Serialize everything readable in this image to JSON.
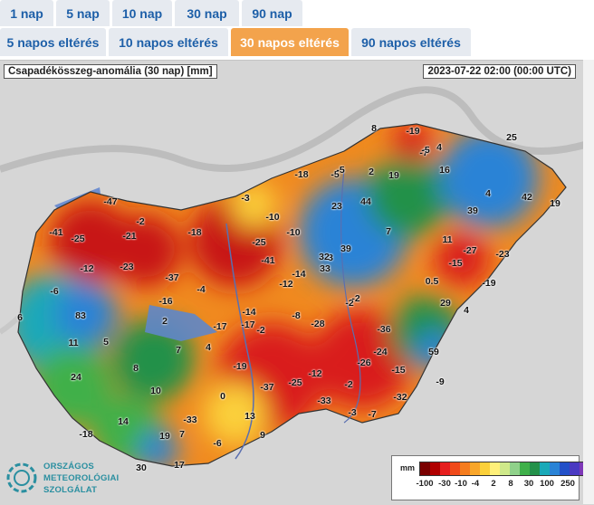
{
  "tabs_row1": [
    "1 nap",
    "5 nap",
    "10 nap",
    "30 nap",
    "90 nap"
  ],
  "tabs_row2": [
    "5 napos eltérés",
    "10 napos eltérés",
    "30 napos eltérés",
    "90 napos eltérés"
  ],
  "active_tab": "30 napos eltérés",
  "map": {
    "title": "Csapadékösszeg-anomália (30 nap) [mm]",
    "timestamp": "2023-07-22 02:00 (00:00 UTC)",
    "values": [
      "-47",
      "-2",
      "-41",
      "-25",
      "-21",
      "-18",
      "-12",
      "-23",
      "-37",
      "-6",
      "-16",
      "-4",
      "83",
      "2",
      "6",
      "11",
      "5",
      "7",
      "4",
      "24",
      "8",
      "10",
      "0",
      "-18",
      "14",
      "19",
      "30",
      "7",
      "17",
      "13",
      "-33",
      "-6",
      "9",
      "-19",
      "-37",
      "-25",
      "-12",
      "-33",
      "-3",
      "-2",
      "-17",
      "-17",
      "-14",
      "-2",
      "-8",
      "-28",
      "-36",
      "-24",
      "-26",
      "-15",
      "-32",
      "-9",
      "-7",
      "-10",
      "-25",
      "-41",
      "-10",
      "-5",
      "-12",
      "-3",
      "-18",
      "-5",
      "2",
      "19",
      "23",
      "44",
      "8",
      "-19",
      "-7",
      "16",
      "-5",
      "4",
      "3",
      "32",
      "33",
      "39",
      "7",
      "11",
      "-27",
      "-15",
      "-23",
      "-19",
      "0.5",
      "29",
      "4",
      "59",
      "25",
      "4",
      "42",
      "19",
      "39",
      "-2",
      "-2",
      "-14"
    ],
    "legend_unit": "mm",
    "legend_ticks": [
      "-100",
      "-30",
      "-10",
      "-4",
      "2",
      "8",
      "30",
      "100",
      "250"
    ],
    "legend_colors": [
      "#7a0000",
      "#b00000",
      "#e61e1e",
      "#f04a1a",
      "#f57c1e",
      "#f9a62a",
      "#fbd03a",
      "#fff07a",
      "#cfe98a",
      "#8fd18a",
      "#3fb04a",
      "#23914a",
      "#1aa9b8",
      "#2a83d6",
      "#2350c8",
      "#4a3ac2",
      "#7e38b8",
      "#a64ac9"
    ],
    "colors": {
      "tab_active": "#f3a34c",
      "tab_text": "#1d5fa8",
      "logo": "#2a8fa0"
    }
  },
  "logo": {
    "line1": "ORSZÁGOS",
    "line2": "METEOROLÓGIAI",
    "line3": "SZOLGÁLAT"
  }
}
